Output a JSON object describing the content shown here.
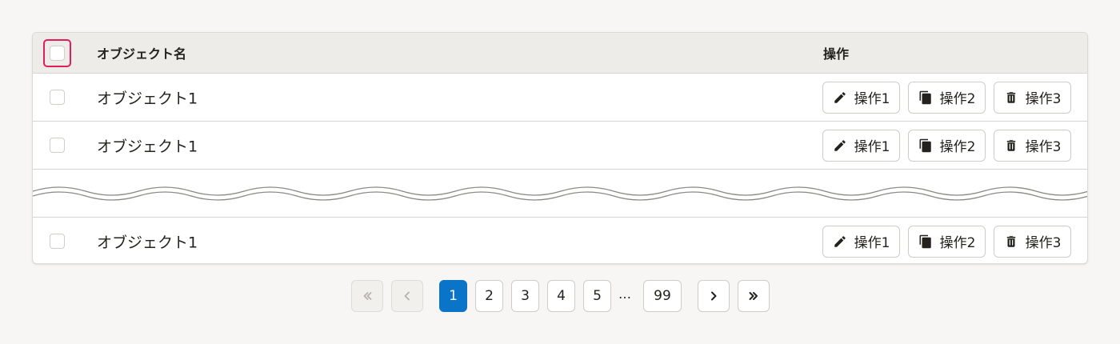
{
  "table": {
    "header": {
      "name_label": "オブジェクト名",
      "actions_label": "操作"
    },
    "rows": [
      {
        "name": "オブジェクト1",
        "actions": [
          "操作1",
          "操作2",
          "操作3"
        ]
      },
      {
        "name": "オブジェクト1",
        "actions": [
          "操作1",
          "操作2",
          "操作3"
        ]
      },
      {
        "name": "オブジェクト1",
        "actions": [
          "操作1",
          "操作2",
          "操作3"
        ]
      }
    ],
    "action_icons": [
      "pencil-icon",
      "copy-icon",
      "trash-icon"
    ]
  },
  "pagination": {
    "pages": [
      "1",
      "2",
      "3",
      "4",
      "5"
    ],
    "ellipsis": "…",
    "last_page": "99",
    "current_page": "1"
  },
  "colors": {
    "accent": "#0a74c8",
    "focus_ring": "#e01e5a",
    "header_bg": "#edece9",
    "page_bg": "#f7f6f4"
  }
}
